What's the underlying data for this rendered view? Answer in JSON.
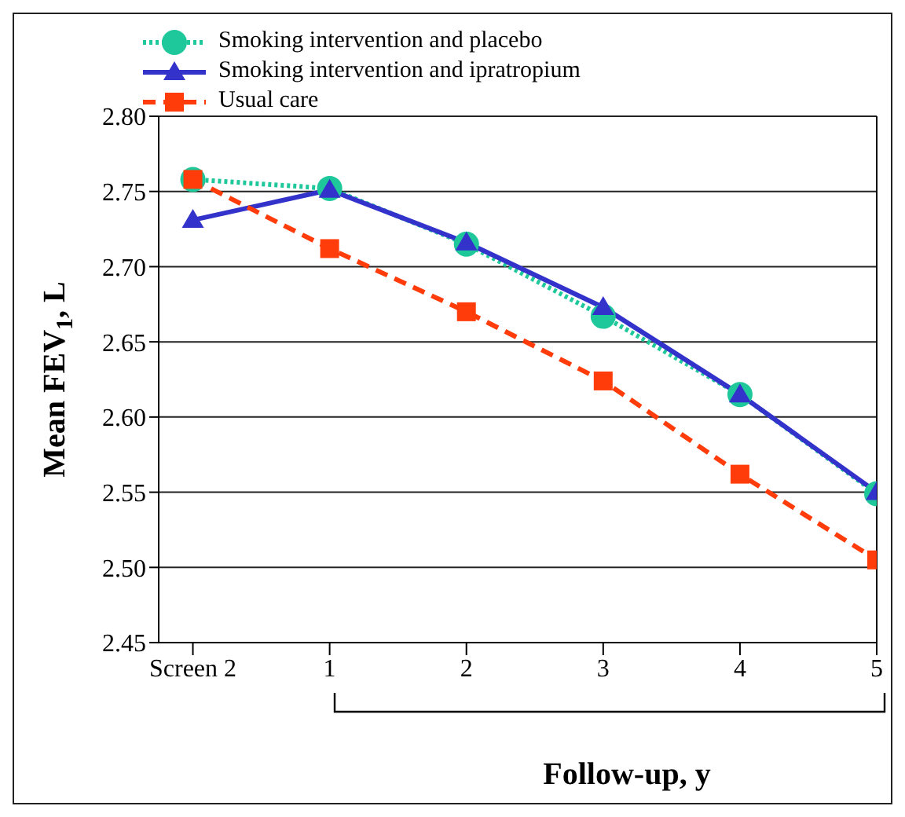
{
  "chart_data": {
    "type": "line",
    "xlabel": "Follow-up, y",
    "ylabel": "Mean FEV$_{1}$, L",
    "categories": [
      "Screen 2",
      "1",
      "2",
      "3",
      "4",
      "5"
    ],
    "series": [
      {
        "name": "Smoking intervention and placebo",
        "color": "#1ec89a",
        "values": [
          2.758,
          2.752,
          2.715,
          2.667,
          2.615,
          2.549
        ],
        "marker": "circle",
        "line_style": "dotted"
      },
      {
        "name": "Smoking intervention and ipratropium",
        "color": "#3333cc",
        "values": [
          2.731,
          2.751,
          2.716,
          2.673,
          2.615,
          2.55
        ],
        "marker": "triangle",
        "line_style": "solid"
      },
      {
        "name": "Usual care",
        "color": "#ff3c0a",
        "values": [
          2.758,
          2.712,
          2.67,
          2.624,
          2.562,
          2.505
        ],
        "marker": "square",
        "line_style": "dashed"
      }
    ],
    "ylim": [
      2.45,
      2.8
    ],
    "yticks": [
      {
        "value": 2.45,
        "label": "2.45"
      },
      {
        "value": 2.5,
        "label": "2.50"
      },
      {
        "value": 2.55,
        "label": "2.55"
      },
      {
        "value": 2.6,
        "label": "2.60"
      },
      {
        "value": 2.65,
        "label": "2.65"
      },
      {
        "value": 2.7,
        "label": "2.70"
      },
      {
        "value": 2.75,
        "label": "2.75"
      },
      {
        "value": 2.8,
        "label": "2.80"
      }
    ],
    "grid": "y",
    "legend": "top"
  }
}
